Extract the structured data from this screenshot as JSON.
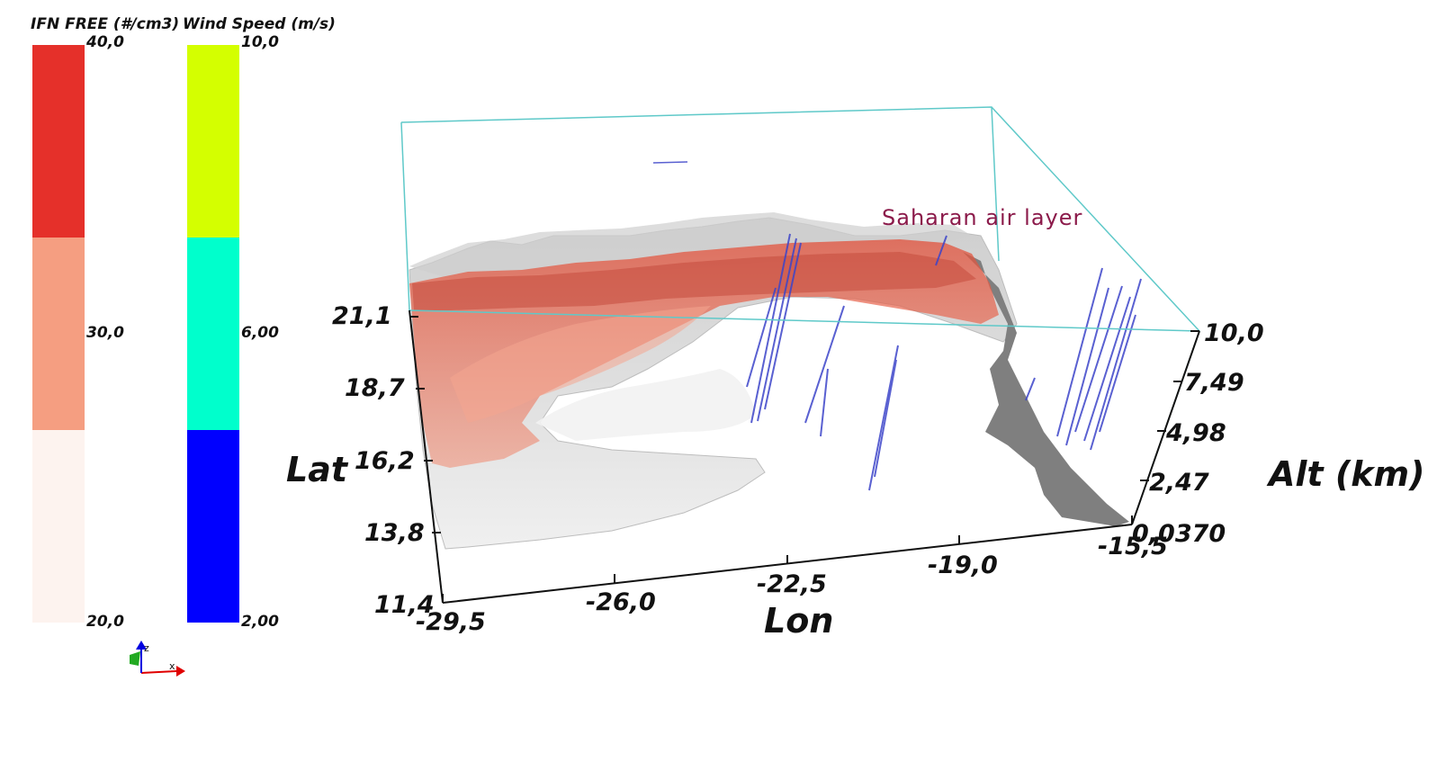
{
  "colorbars": {
    "ifn": {
      "title": "IFN FREE (#/cm3)",
      "ticks": [
        "40,0",
        "30,0",
        "20,0"
      ],
      "colors": [
        "#e5302a",
        "#f59e81",
        "#fdf3ef"
      ]
    },
    "wind": {
      "title": "Wind Speed (m/s)",
      "ticks": [
        "10,0",
        "6,00",
        "2,00"
      ],
      "colors": [
        "#d4ff00",
        "#00ffcc",
        "#0000ff"
      ]
    }
  },
  "axes": {
    "lat": {
      "title": "Lat",
      "ticks": [
        "21,1",
        "18,7",
        "16,2",
        "13,8",
        "11,4"
      ]
    },
    "lon": {
      "title": "Lon",
      "ticks": [
        "-29,5",
        "-26,0",
        "-22,5",
        "-19,0",
        "-15,5"
      ]
    },
    "alt": {
      "title": "Alt (km)",
      "ticks": [
        "10,0",
        "7,49",
        "4,98",
        "2,47",
        "0,0370"
      ]
    }
  },
  "annotation": "Saharan air layer",
  "orientation_widget": {
    "z_label": "z",
    "x_label": "x"
  },
  "colors": {
    "bounding_box": "#5fc9c9",
    "terrain": "#d9d9d9",
    "ground": "#808080",
    "wind_lines": "#3d45c9"
  }
}
